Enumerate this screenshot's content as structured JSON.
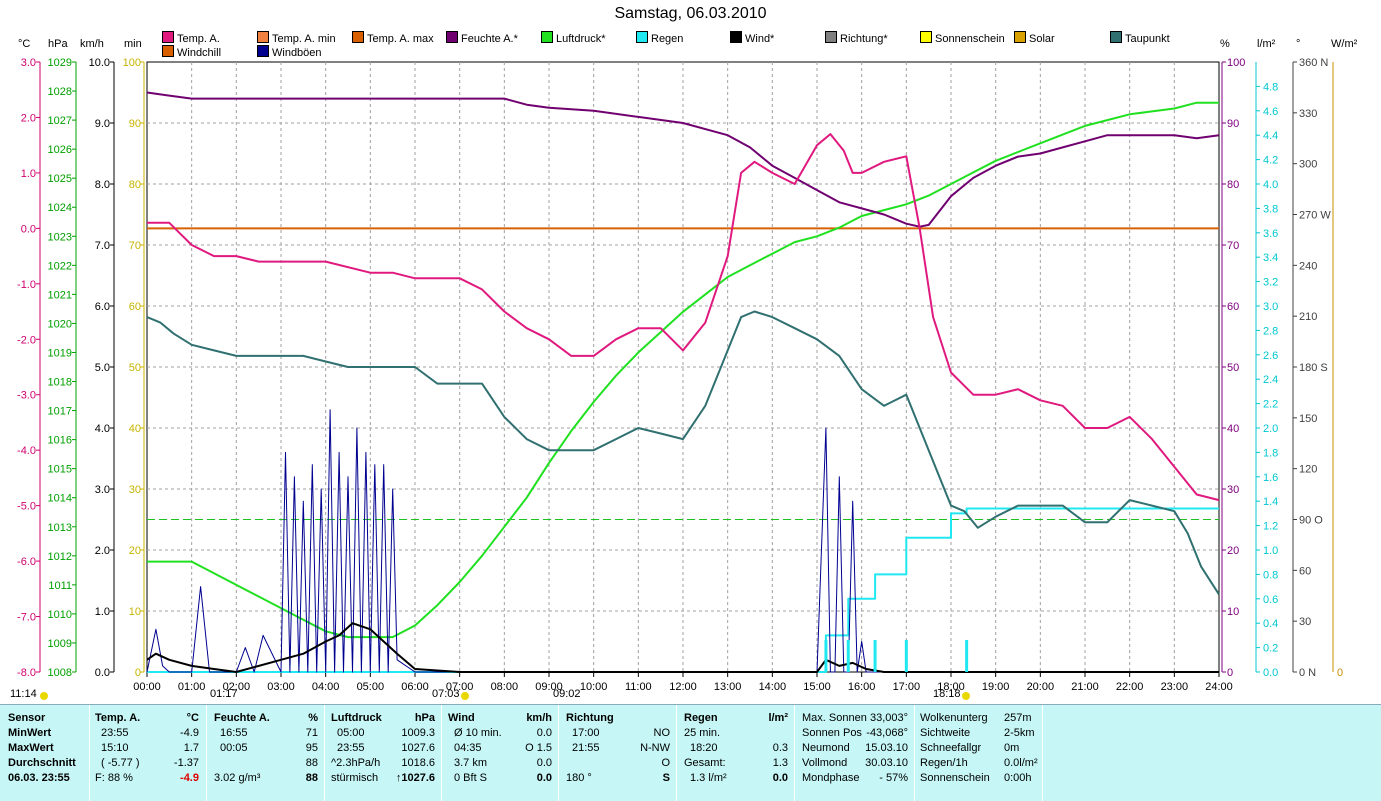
{
  "title": "Samstag, 06.03.2010",
  "axis_headers": {
    "temp": "°C",
    "hpa": "hPa",
    "kmh": "km/h",
    "min": "min",
    "pct": "%",
    "rain": "l/m²",
    "deg": "°",
    "wm2": "W/m²"
  },
  "legend": [
    {
      "label": "Temp. A.",
      "color": "#e0197f"
    },
    {
      "label": "Temp. A. min",
      "color": "#f08040"
    },
    {
      "label": "Temp. A. max",
      "color": "#d86000"
    },
    {
      "label": "Feuchte A.*",
      "color": "#700070"
    },
    {
      "label": "Luftdruck*",
      "color": "#20e020"
    },
    {
      "label": "Regen",
      "color": "#20e8f0"
    },
    {
      "label": "Wind*",
      "color": "#000000"
    },
    {
      "label": "Richtung*",
      "color": "#808080"
    },
    {
      "label": "Sonnenschein",
      "color": "#ffff00"
    },
    {
      "label": "Solar",
      "color": "#d8a000"
    },
    {
      "label": "Taupunkt",
      "color": "#307070"
    },
    {
      "label": "Windchill",
      "color": "#d86000"
    },
    {
      "label": "Windböen",
      "color": "#000090"
    }
  ],
  "colors": {
    "temp": "#e0197f",
    "humidity": "#700070",
    "pressure": "#20e020",
    "rain": "#20e8f0",
    "wind": "#000000",
    "gust": "#000090",
    "dewpoint": "#307070",
    "tempmax": "#d86000",
    "ax_temp": "#d0006f",
    "ax_hpa": "#00a000",
    "ax_kmh": "#000000",
    "ax_min": "#c8b400",
    "ax_pct": "#800080",
    "ax_rain": "#00c8d0",
    "ax_deg": "#404040",
    "ax_wm2": "#c89000"
  },
  "chart_data": {
    "type": "line",
    "x_range": [
      0,
      24
    ],
    "x_ticks": [
      "00:00",
      "01:00",
      "02:00",
      "03:00",
      "04:00",
      "05:00",
      "06:00",
      "07:00",
      "08:00",
      "09:00",
      "10:00",
      "11:00",
      "12:00",
      "13:00",
      "14:00",
      "15:00",
      "16:00",
      "17:00",
      "18:00",
      "19:00",
      "20:00",
      "21:00",
      "22:00",
      "23:00",
      "24:00"
    ],
    "axes": {
      "temp": {
        "min": -8,
        "max": 3,
        "ticks": [
          "3.0",
          "2.0",
          "1.0",
          "0.0",
          "-1.0",
          "-2.0",
          "-3.0",
          "-4.0",
          "-5.0",
          "-6.0",
          "-7.0",
          "-8.0"
        ]
      },
      "hpa": {
        "min": 1008,
        "max": 1029,
        "ticks": [
          "1029",
          "1028",
          "1027",
          "1026",
          "1025",
          "1024",
          "1023",
          "1022",
          "1021",
          "1020",
          "1019",
          "1018",
          "1017",
          "1016",
          "1015",
          "1014",
          "1013",
          "1012",
          "1011",
          "1010",
          "1009",
          "1008"
        ]
      },
      "kmh": {
        "min": 0,
        "max": 10,
        "ticks": [
          "10.0",
          "9.0",
          "8.0",
          "7.0",
          "6.0",
          "5.0",
          "4.0",
          "3.0",
          "2.0",
          "1.0",
          "0.0"
        ]
      },
      "min": {
        "min": 0,
        "max": 100,
        "ticks": [
          "100",
          "90",
          "80",
          "70",
          "60",
          "50",
          "40",
          "30",
          "20",
          "10",
          "0"
        ]
      },
      "pct": {
        "min": 0,
        "max": 100,
        "ticks": [
          "100",
          "90",
          "80",
          "70",
          "60",
          "50",
          "40",
          "30",
          "20",
          "10",
          "0"
        ]
      },
      "rain": {
        "min": 0,
        "max": 5,
        "ticks": [
          "4.8",
          "4.6",
          "4.4",
          "4.2",
          "4.0",
          "3.8",
          "3.6",
          "3.4",
          "3.2",
          "3.0",
          "2.8",
          "2.6",
          "2.4",
          "2.2",
          "2.0",
          "1.8",
          "1.6",
          "1.4",
          "1.2",
          "1.0",
          "0.8",
          "0.6",
          "0.4",
          "0.2",
          "0.0"
        ]
      },
      "deg": {
        "min": 0,
        "max": 360,
        "ticks": [
          "360 N",
          "330",
          "300",
          "270 W",
          "240",
          "210",
          "180 S",
          "150",
          "120",
          "90 O",
          "60",
          "30",
          "0 N"
        ]
      },
      "wm2": {
        "min": 0,
        "max": 0,
        "ticks": [
          "0"
        ]
      }
    },
    "series": [
      {
        "name": "Temp. A.",
        "axis": "temp",
        "x": [
          0,
          0.5,
          0.75,
          1,
          1.5,
          2,
          2.5,
          3,
          4,
          5,
          5.5,
          6,
          7,
          7.5,
          8,
          8.5,
          9,
          9.5,
          10,
          10.5,
          11,
          11.5,
          12,
          12.5,
          13,
          13.3,
          13.6,
          14,
          14.5,
          15,
          15.3,
          15.6,
          15.8,
          16,
          16.5,
          17,
          17.3,
          17.6,
          18,
          18.5,
          19,
          19.5,
          20,
          20.5,
          21,
          21.5,
          22,
          22.5,
          23,
          23.5,
          24
        ],
        "y": [
          0.1,
          0.1,
          -0.1,
          -0.3,
          -0.5,
          -0.5,
          -0.6,
          -0.6,
          -0.6,
          -0.8,
          -0.8,
          -0.9,
          -0.9,
          -1.1,
          -1.5,
          -1.8,
          -2.0,
          -2.3,
          -2.3,
          -2.0,
          -1.8,
          -1.8,
          -2.2,
          -1.7,
          -0.5,
          1.0,
          1.2,
          1.0,
          0.8,
          1.5,
          1.7,
          1.4,
          1.0,
          1.0,
          1.2,
          1.3,
          0.0,
          -1.6,
          -2.6,
          -3.0,
          -3.0,
          -2.9,
          -3.1,
          -3.2,
          -3.6,
          -3.6,
          -3.4,
          -3.8,
          -4.3,
          -4.8,
          -4.9
        ]
      },
      {
        "name": "Temp. A. max",
        "axis": "temp",
        "x": [
          0,
          24
        ],
        "y": [
          0.0,
          0.0
        ]
      },
      {
        "name": "Feuchte A.*",
        "axis": "pct",
        "x": [
          0,
          0.5,
          1,
          2,
          3,
          4,
          5,
          6,
          7,
          8,
          8.5,
          9,
          10,
          11,
          12,
          13,
          13.5,
          14,
          14.5,
          15,
          15.5,
          16,
          16.5,
          17,
          17.3,
          17.5,
          18,
          18.5,
          19,
          19.5,
          20,
          20.5,
          21,
          21.5,
          22,
          22.5,
          23,
          23.5,
          24
        ],
        "y": [
          95,
          94.5,
          94,
          94,
          94,
          94,
          94,
          94,
          94,
          94,
          93,
          92.5,
          92,
          91,
          90,
          88,
          86,
          83,
          81,
          79,
          77,
          76,
          75,
          73.5,
          73,
          73.3,
          78,
          81,
          83,
          84.5,
          85,
          86,
          87,
          88,
          88,
          88,
          88,
          87.5,
          88
        ]
      },
      {
        "name": "Luftdruck*",
        "axis": "hpa",
        "x": [
          0,
          0.5,
          1,
          1.5,
          2,
          2.5,
          3,
          3.5,
          4,
          4.5,
          5,
          5.5,
          6,
          6.5,
          7,
          7.5,
          8,
          8.5,
          9,
          9.5,
          10,
          10.5,
          11,
          11.5,
          12,
          12.5,
          13,
          13.5,
          14,
          14.5,
          15,
          15.5,
          16,
          16.5,
          17,
          17.5,
          18,
          18.5,
          19,
          19.5,
          20,
          20.5,
          21,
          21.5,
          22,
          22.5,
          23,
          23.5,
          24
        ],
        "y": [
          1011.8,
          1011.8,
          1011.8,
          1011.4,
          1011.0,
          1010.6,
          1010.2,
          1009.8,
          1009.4,
          1009.2,
          1009.2,
          1009.2,
          1009.6,
          1010.3,
          1011.1,
          1012.0,
          1013.0,
          1014.0,
          1015.2,
          1016.3,
          1017.3,
          1018.2,
          1019.0,
          1019.7,
          1020.4,
          1021.0,
          1021.6,
          1022.0,
          1022.4,
          1022.8,
          1023.0,
          1023.3,
          1023.7,
          1023.9,
          1024.1,
          1024.4,
          1024.8,
          1025.2,
          1025.6,
          1025.9,
          1026.2,
          1026.5,
          1026.8,
          1027.0,
          1027.2,
          1027.3,
          1027.4,
          1027.6,
          1027.6
        ]
      },
      {
        "name": "Taupunkt",
        "axis": "temp",
        "x": [
          0,
          0.3,
          0.6,
          1,
          1.5,
          2,
          2.5,
          3,
          3.5,
          4,
          4.5,
          5,
          5.5,
          6,
          6.5,
          7,
          7.5,
          8,
          8.5,
          9,
          9.5,
          10,
          10.5,
          11,
          11.5,
          12,
          12.5,
          13,
          13.3,
          13.6,
          14,
          14.5,
          15,
          15.5,
          16,
          16.5,
          17,
          17.3,
          17.6,
          18,
          18.3,
          18.6,
          19,
          19.5,
          20,
          20.5,
          21,
          21.5,
          22,
          22.5,
          23,
          23.3,
          23.6,
          24
        ],
        "y": [
          -1.6,
          -1.7,
          -1.9,
          -2.1,
          -2.2,
          -2.3,
          -2.3,
          -2.3,
          -2.3,
          -2.4,
          -2.5,
          -2.5,
          -2.5,
          -2.5,
          -2.8,
          -2.8,
          -2.8,
          -3.4,
          -3.8,
          -4.0,
          -4.0,
          -4.0,
          -3.8,
          -3.6,
          -3.7,
          -3.8,
          -3.2,
          -2.2,
          -1.6,
          -1.5,
          -1.6,
          -1.8,
          -2.0,
          -2.3,
          -2.9,
          -3.2,
          -3.0,
          -3.6,
          -4.2,
          -5.0,
          -5.1,
          -5.4,
          -5.2,
          -5.0,
          -5.0,
          -5.0,
          -5.3,
          -5.3,
          -4.9,
          -5.0,
          -5.1,
          -5.5,
          -6.1,
          -6.6
        ]
      },
      {
        "name": "Regen",
        "axis": "rain",
        "x": [
          0,
          15.2,
          15.2,
          15.7,
          15.7,
          16.3,
          16.3,
          17.0,
          17.0,
          18.0,
          18.0,
          18.35,
          18.35,
          24
        ],
        "y": [
          0,
          0,
          0.3,
          0.3,
          0.6,
          0.6,
          0.8,
          0.8,
          1.1,
          1.1,
          1.3,
          1.3,
          1.34,
          1.34
        ]
      },
      {
        "name": "Windböen",
        "axis": "kmh",
        "x": [
          0,
          0.2,
          0.35,
          0.5,
          1,
          1.2,
          1.4,
          1.6,
          2,
          2.2,
          2.4,
          2.6,
          3,
          3.1,
          3.2,
          3.3,
          3.4,
          3.5,
          3.6,
          3.7,
          3.8,
          3.9,
          4.0,
          4.1,
          4.2,
          4.3,
          4.4,
          4.5,
          4.6,
          4.7,
          4.8,
          4.9,
          5.0,
          5.1,
          5.2,
          5.3,
          5.4,
          5.5,
          5.6,
          6,
          15,
          15.2,
          15.3,
          15.4,
          15.5,
          15.6,
          15.7,
          15.8,
          15.9,
          16.0,
          16.1,
          24
        ],
        "y": [
          0,
          0.7,
          0.1,
          0,
          0,
          1.4,
          0,
          0,
          0,
          0.4,
          0,
          0.6,
          0,
          3.6,
          0,
          3.2,
          0,
          2.8,
          0,
          3.4,
          0,
          3.0,
          0,
          4.3,
          0,
          3.6,
          0,
          3.2,
          0,
          4.0,
          0,
          3.6,
          0,
          3.4,
          0,
          3.4,
          0,
          3.0,
          0.2,
          0,
          0,
          4.0,
          0,
          0,
          3.2,
          0,
          0,
          2.8,
          0,
          0.5,
          0,
          0
        ]
      },
      {
        "name": "Wind*",
        "axis": "kmh",
        "x": [
          0,
          0.2,
          0.5,
          1,
          1.5,
          2,
          3,
          3.5,
          4,
          4.3,
          4.6,
          5.0,
          5.3,
          5.6,
          6,
          7,
          15,
          15.2,
          15.5,
          15.8,
          16.1,
          16.5,
          24
        ],
        "y": [
          0.2,
          0.3,
          0.2,
          0.1,
          0.05,
          0,
          0.2,
          0.3,
          0.5,
          0.6,
          0.8,
          0.7,
          0.5,
          0.3,
          0.05,
          0,
          0,
          0.2,
          0.1,
          0.15,
          0.05,
          0,
          0
        ]
      }
    ],
    "rain_ticks": [
      15.2,
      15.7,
      16.3,
      17.0,
      18.35
    ],
    "ref_line": {
      "axis": "pct",
      "value": 25,
      "style": "dashed"
    },
    "day_marks": {
      "sunrise_before": "11:14",
      "t0117": "01:17",
      "sunrise": "07:03",
      "t0902": "09:02",
      "sunset": "18:18"
    }
  },
  "footer": {
    "sensor": {
      "h": "Sensor",
      "rows": [
        "MinWert",
        "MaxWert",
        "Durchschnitt",
        "06.03. 23:55"
      ]
    },
    "temp": {
      "h": "Temp. A.",
      "unit": "°C",
      "r1a": "23:55",
      "r1b": "-4.9",
      "r2a": "15:10",
      "r2b": "1.7",
      "r3a": "( -5.77 )",
      "r3b": "-1.37",
      "r4a": "F: 88 %",
      "r4b": "-4.9"
    },
    "hum": {
      "h": "Feuchte A.",
      "unit": "%",
      "r1a": "16:55",
      "r1b": "71",
      "r2a": "00:05",
      "r2b": "95",
      "r3b": "88",
      "r4a": "3.02 g/m³",
      "r4b": "88"
    },
    "press": {
      "h": "Luftdruck",
      "unit": "hPa",
      "r1a": "05:00",
      "r1b": "1009.3",
      "r2a": "23:55",
      "r2b": "1027.6",
      "r3a": "^2.3hPa/h",
      "r3b": "1018.6",
      "r4a": "stürmisch",
      "r4b": "↑1027.6"
    },
    "wind": {
      "h": "Wind",
      "unit": "km/h",
      "r1a": "Ø 10 min.",
      "r1b": "0.0",
      "r2a": "04:35",
      "r2b": "O 1.5",
      "r3a": "3.7 km",
      "r3b": "0.0",
      "r4a": "0 Bft S",
      "r4b": "0.0"
    },
    "dir": {
      "h": "Richtung",
      "r1a": "17:00",
      "r1b": "NO",
      "r2a": "21:55",
      "r2b": "N-NW",
      "r3b": "O",
      "r4a": "180 °",
      "r4b": "S"
    },
    "rain": {
      "h": "Regen",
      "unit": "l/m²",
      "r1a": "25 min.",
      "r2a": "18:20",
      "r2b": "0.3",
      "r3a": "Gesamt:",
      "r3b": "1.3",
      "r4a": "1.3 l/m²",
      "r4b": "0.0"
    },
    "astro": {
      "r1a": "Max. Sonnen",
      "r1b": "33,003°",
      "r2a": "Sonnen Pos",
      "r2b": "-43,068°",
      "r3a": "Neumond",
      "r3b": "15.03.10",
      "r4a": "Vollmond",
      "r4b": "30.03.10",
      "r5a": "Mondphase",
      "r5b": "- 57%"
    },
    "misc": {
      "r1a": "Wolkenunterg",
      "r1b": "257m",
      "r2a": "Sichtweite",
      "r2b": "2-5km",
      "r3a": "Schneefallgr",
      "r3b": "0m",
      "r4a": "Regen/1h",
      "r4b": "0.0l/m²",
      "r5a": "Sonnenschein",
      "r5b": "0:00h"
    }
  }
}
